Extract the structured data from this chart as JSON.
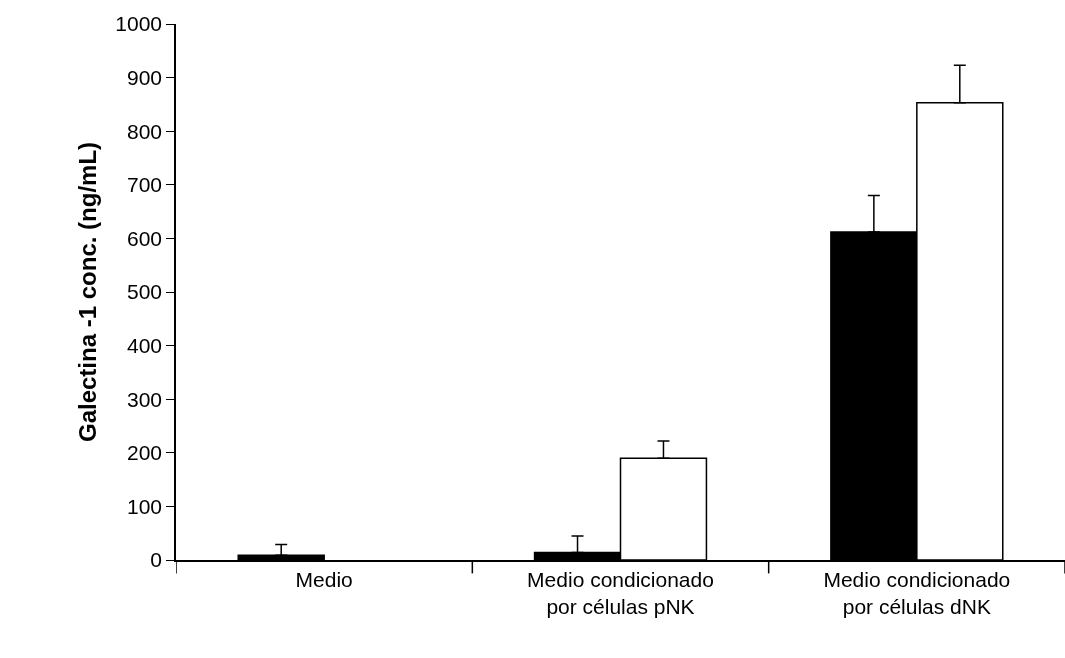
{
  "chart_data": {
    "type": "bar",
    "ylabel": "Galectina -1 conc. (ng/mL)",
    "categories": [
      "Medio",
      "Medio condicionado por células pNK",
      "Medio condicionado por células dNK"
    ],
    "series": [
      {
        "color": "#000000",
        "values": [
          9,
          14,
          612
        ],
        "errors": [
          20,
          31,
          68
        ]
      },
      {
        "color": "#ffffff",
        "values": [
          null,
          190,
          853
        ],
        "errors": [
          null,
          32,
          70
        ]
      }
    ],
    "ylim": [
      0,
      1000
    ],
    "yticks": [
      0,
      100,
      200,
      300,
      400,
      500,
      600,
      700,
      800,
      900,
      1000
    ]
  }
}
